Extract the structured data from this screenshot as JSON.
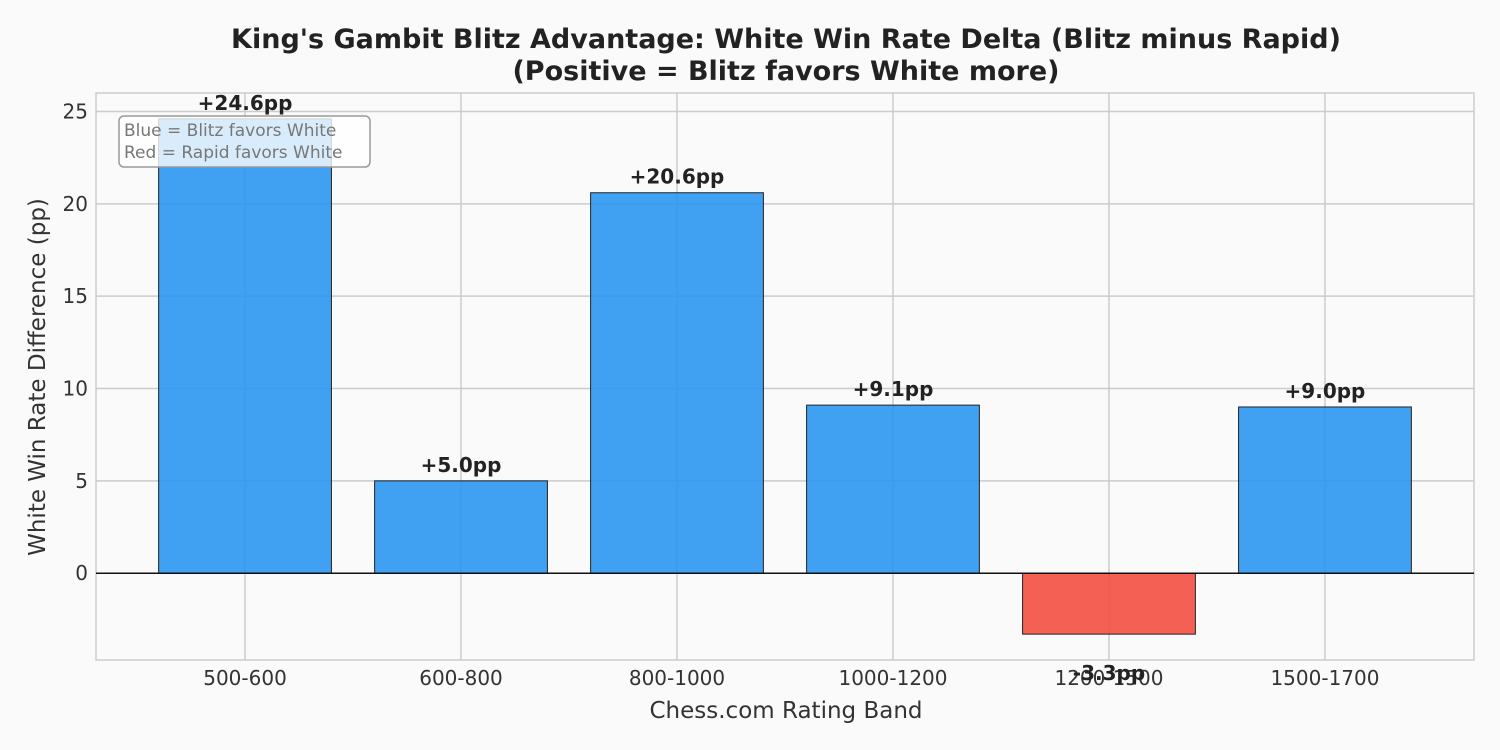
{
  "chart_data": {
    "type": "bar",
    "title": "King's Gambit Blitz Advantage: White Win Rate Delta (Blitz minus Rapid)",
    "subtitle": "(Positive = Blitz favors White more)",
    "xlabel": "Chess.com Rating Band",
    "ylabel": "White Win Rate Difference (pp)",
    "categories": [
      "500-600",
      "600-800",
      "800-1000",
      "1000-1200",
      "1200-1500",
      "1500-1700"
    ],
    "values": [
      24.6,
      5.0,
      20.6,
      9.1,
      -3.3,
      9.0
    ],
    "data_labels": [
      "+24.6pp",
      "+5.0pp",
      "+20.6pp",
      "+9.1pp",
      "-3.3pp",
      "+9.0pp"
    ],
    "ylim": [
      -4.7,
      26
    ],
    "yticks": [
      0,
      5,
      10,
      15,
      20,
      25
    ],
    "grid": true,
    "legend_placement": "top-left",
    "legend_lines": [
      "Blue = Blitz favors White",
      "Red = Rapid favors White"
    ],
    "colors": {
      "positive": "#2b96f0",
      "negative": "#f44f42"
    }
  }
}
